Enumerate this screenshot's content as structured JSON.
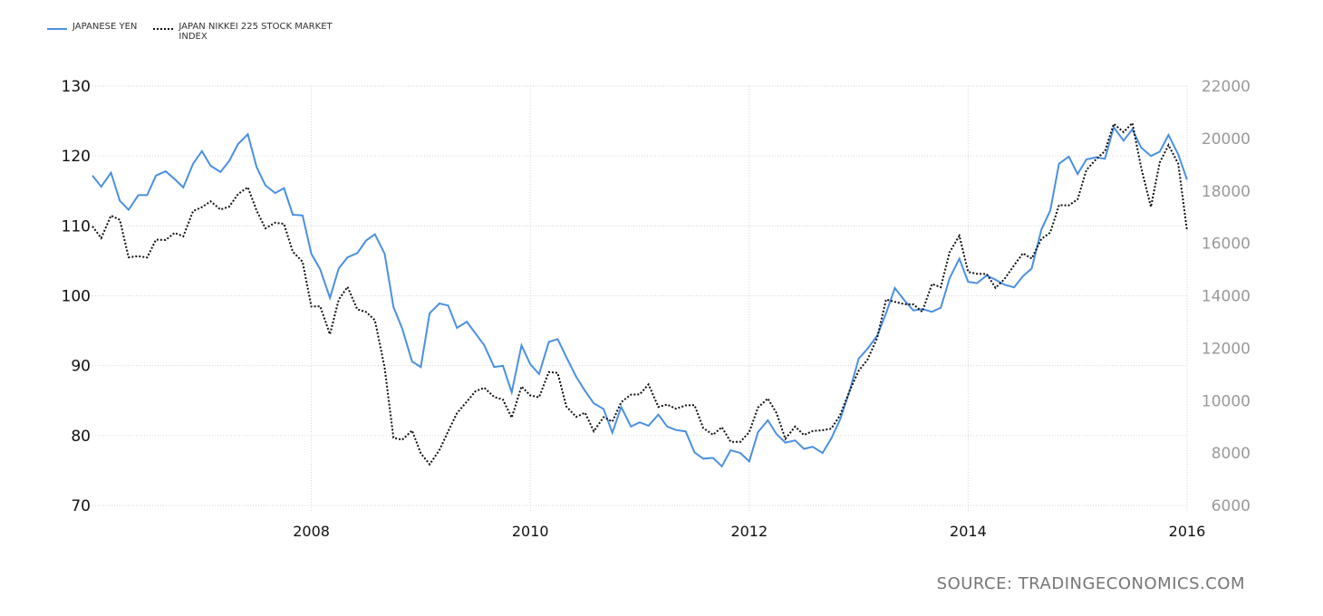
{
  "legend": [
    {
      "label_1": "JAPANESE YEN",
      "label_2": ""
    },
    {
      "label_1": "JAPAN NIKKEI 225 STOCK MARKET",
      "label_2": "INDEX"
    }
  ],
  "source": "SOURCE: TRADINGECONOMICS.COM",
  "colors": {
    "yen": "#4a90e2",
    "nikkei": "#111111",
    "grid": "#d6d6d6"
  },
  "chart_data": {
    "type": "line",
    "x_ticks": [
      "2008",
      "2010",
      "2012",
      "2014",
      "2016"
    ],
    "y_left": {
      "range": [
        70,
        130
      ],
      "ticks": [
        70,
        80,
        90,
        100,
        110,
        120,
        130
      ]
    },
    "y_right": {
      "range": [
        6000,
        22000
      ],
      "ticks": [
        6000,
        8000,
        10000,
        12000,
        14000,
        16000,
        18000,
        20000,
        22000
      ]
    },
    "grid": "dotted",
    "legend_position": "top-left",
    "series": [
      {
        "name": "JAPANESE YEN",
        "axis": "left",
        "x": [
          2006.0,
          2006.08,
          2006.17,
          2006.25,
          2006.33,
          2006.42,
          2006.5,
          2006.58,
          2006.67,
          2006.75,
          2006.83,
          2006.92,
          2007.0,
          2007.08,
          2007.17,
          2007.25,
          2007.33,
          2007.42,
          2007.5,
          2007.58,
          2007.67,
          2007.75,
          2007.83,
          2007.92,
          2008.0,
          2008.08,
          2008.17,
          2008.25,
          2008.33,
          2008.42,
          2008.5,
          2008.58,
          2008.67,
          2008.75,
          2008.83,
          2008.92,
          2009.0,
          2009.08,
          2009.17,
          2009.25,
          2009.33,
          2009.42,
          2009.5,
          2009.58,
          2009.67,
          2009.75,
          2009.83,
          2009.92,
          2010.0,
          2010.08,
          2010.17,
          2010.25,
          2010.33,
          2010.42,
          2010.5,
          2010.58,
          2010.67,
          2010.75,
          2010.83,
          2010.92,
          2011.0,
          2011.08,
          2011.17,
          2011.25,
          2011.33,
          2011.42,
          2011.5,
          2011.58,
          2011.67,
          2011.75,
          2011.83,
          2011.92,
          2012.0,
          2012.08,
          2012.17,
          2012.25,
          2012.33,
          2012.42,
          2012.5,
          2012.58,
          2012.67,
          2012.75,
          2012.83,
          2012.92,
          2013.0,
          2013.08,
          2013.17,
          2013.25,
          2013.33,
          2013.42,
          2013.5,
          2013.58,
          2013.67,
          2013.75,
          2013.83,
          2013.92,
          2014.0,
          2014.08,
          2014.17,
          2014.25,
          2014.33,
          2014.42,
          2014.5,
          2014.58,
          2014.67,
          2014.75,
          2014.83,
          2014.92,
          2015.0,
          2015.08,
          2015.17,
          2015.25,
          2015.33,
          2015.42,
          2015.5,
          2015.58,
          2015.67,
          2015.75,
          2015.83,
          2015.92,
          2016.0
        ],
        "y": [
          117.2,
          115.6,
          117.6,
          113.6,
          112.3,
          114.4,
          114.4,
          117.2,
          117.8,
          116.7,
          115.5,
          118.9,
          120.7,
          118.6,
          117.7,
          119.3,
          121.7,
          123.1,
          118.4,
          115.8,
          114.7,
          115.4,
          111.6,
          111.5,
          106.0,
          103.8,
          99.7,
          103.9,
          105.5,
          106.1,
          107.9,
          108.8,
          106.0,
          98.4,
          95.3,
          90.6,
          89.8,
          97.5,
          98.9,
          98.6,
          95.4,
          96.3,
          94.6,
          92.9,
          89.8,
          90.0,
          86.2,
          92.9,
          90.2,
          88.8,
          93.4,
          93.8,
          91.2,
          88.4,
          86.4,
          84.6,
          83.8,
          80.4,
          84.1,
          81.3,
          81.9,
          81.4,
          83.0,
          81.3,
          80.8,
          80.6,
          77.6,
          76.7,
          76.8,
          75.6,
          77.9,
          77.5,
          76.3,
          80.5,
          82.2,
          80.2,
          79.0,
          79.3,
          78.1,
          78.4,
          77.5,
          79.6,
          82.3,
          86.5,
          91.0,
          92.4,
          94.3,
          97.5,
          101.1,
          99.3,
          97.9,
          98.1,
          97.7,
          98.3,
          102.5,
          105.3,
          102.0,
          101.8,
          102.9,
          102.3,
          101.6,
          101.2,
          102.8,
          103.9,
          109.5,
          112.2,
          118.9,
          119.9,
          117.4,
          119.5,
          119.8,
          119.6,
          124.1,
          122.2,
          123.8,
          121.2,
          120.0,
          120.6,
          123.0,
          120.2,
          116.6
        ]
      },
      {
        "name": "JAPAN NIKKEI 225 STOCK MARKET INDEX",
        "axis": "right",
        "x": [
          2006.0,
          2006.08,
          2006.17,
          2006.25,
          2006.33,
          2006.42,
          2006.5,
          2006.58,
          2006.67,
          2006.75,
          2006.83,
          2006.92,
          2007.0,
          2007.08,
          2007.17,
          2007.25,
          2007.33,
          2007.42,
          2007.5,
          2007.58,
          2007.67,
          2007.75,
          2007.83,
          2007.92,
          2008.0,
          2008.08,
          2008.17,
          2008.25,
          2008.33,
          2008.42,
          2008.5,
          2008.58,
          2008.67,
          2008.75,
          2008.83,
          2008.92,
          2009.0,
          2009.08,
          2009.17,
          2009.25,
          2009.33,
          2009.42,
          2009.5,
          2009.58,
          2009.67,
          2009.75,
          2009.83,
          2009.92,
          2010.0,
          2010.08,
          2010.17,
          2010.25,
          2010.33,
          2010.42,
          2010.5,
          2010.58,
          2010.67,
          2010.75,
          2010.83,
          2010.92,
          2011.0,
          2011.08,
          2011.17,
          2011.25,
          2011.33,
          2011.42,
          2011.5,
          2011.58,
          2011.67,
          2011.75,
          2011.83,
          2011.92,
          2012.0,
          2012.08,
          2012.17,
          2012.25,
          2012.33,
          2012.42,
          2012.5,
          2012.58,
          2012.67,
          2012.75,
          2012.83,
          2012.92,
          2013.0,
          2013.08,
          2013.17,
          2013.25,
          2013.33,
          2013.42,
          2013.5,
          2013.58,
          2013.67,
          2013.75,
          2013.83,
          2013.92,
          2014.0,
          2014.08,
          2014.17,
          2014.25,
          2014.33,
          2014.42,
          2014.5,
          2014.58,
          2014.67,
          2014.75,
          2014.83,
          2014.92,
          2015.0,
          2015.08,
          2015.17,
          2015.25,
          2015.33,
          2015.42,
          2015.5,
          2015.58,
          2015.67,
          2015.75,
          2015.83,
          2015.92,
          2016.0
        ],
        "y": [
          16650,
          16200,
          17060,
          16900,
          15470,
          15510,
          15460,
          16140,
          16130,
          16400,
          16270,
          17230,
          17380,
          17600,
          17290,
          17400,
          17880,
          18140,
          17250,
          16570,
          16790,
          16740,
          15680,
          15300,
          13590,
          13600,
          12530,
          13850,
          14340,
          13480,
          13380,
          13070,
          11260,
          8580,
          8510,
          8860,
          7990,
          7570,
          8110,
          8830,
          9520,
          9960,
          10360,
          10490,
          10140,
          10040,
          9350,
          10540,
          10200,
          10130,
          11090,
          11060,
          9770,
          9380,
          9540,
          8830,
          9370,
          9200,
          9940,
          10230,
          10240,
          10620,
          9760,
          9850,
          9690,
          9820,
          9830,
          8950,
          8700,
          8990,
          8430,
          8430,
          8800,
          9740,
          10080,
          9520,
          8540,
          9010,
          8690,
          8840,
          8870,
          8930,
          9450,
          10400,
          11140,
          11560,
          12400,
          13860,
          13770,
          13680,
          13670,
          13390,
          14450,
          14330,
          15660,
          16290,
          14910,
          14840,
          14830,
          14300,
          14630,
          15160,
          15620,
          15420,
          16170,
          16410,
          17460,
          17450,
          17680,
          18800,
          19210,
          19520,
          20560,
          20240,
          20590,
          18890,
          17390,
          19080,
          19750,
          19030,
          16470
        ]
      }
    ]
  }
}
